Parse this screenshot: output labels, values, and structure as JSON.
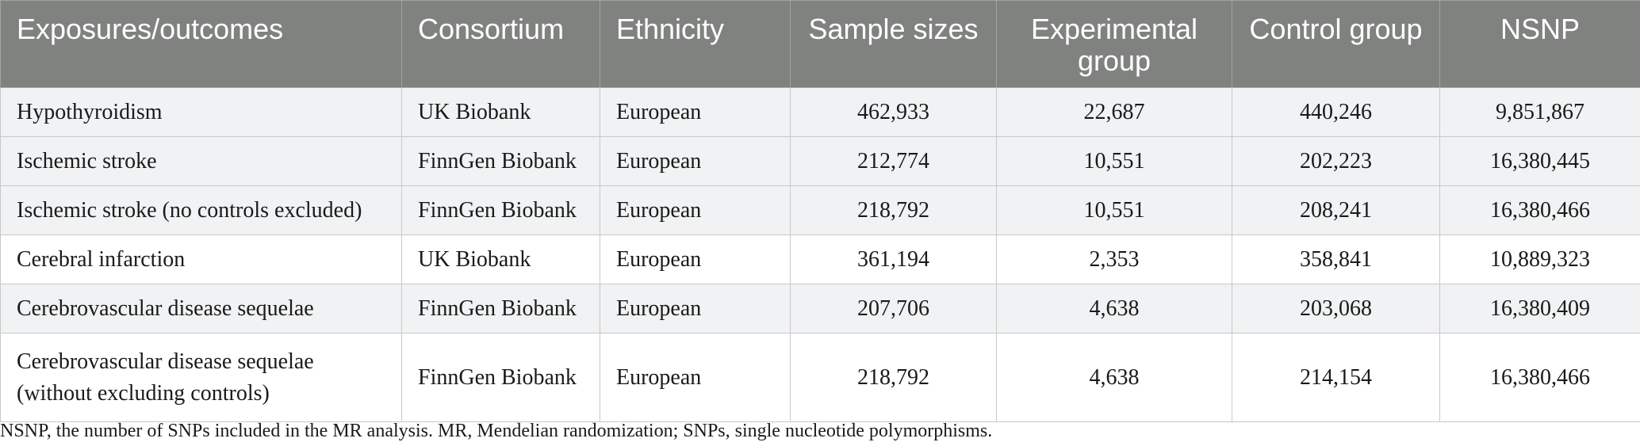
{
  "table": {
    "headers": [
      "Exposures/outcomes",
      "Consortium",
      "Ethnicity",
      "Sample sizes",
      "Experimental group",
      "Control group",
      "NSNP"
    ],
    "rows": [
      [
        "Hypothyroidism",
        "UK Biobank",
        "European",
        "462,933",
        "22,687",
        "440,246",
        "9,851,867"
      ],
      [
        "Ischemic stroke",
        "FinnGen Biobank",
        "European",
        "212,774",
        "10,551",
        "202,223",
        "16,380,445"
      ],
      [
        "Ischemic stroke (no controls excluded)",
        "FinnGen Biobank",
        "European",
        "218,792",
        "10,551",
        "208,241",
        "16,380,466"
      ],
      [
        "Cerebral infarction",
        "UK Biobank",
        "European",
        "361,194",
        "2,353",
        "358,841",
        "10,889,323"
      ],
      [
        "Cerebrovascular disease sequelae",
        "FinnGen Biobank",
        "European",
        "207,706",
        "4,638",
        "203,068",
        "16,380,409"
      ],
      [
        "Cerebrovascular disease sequelae (without excluding controls)",
        "FinnGen Biobank",
        "European",
        "218,792",
        "4,638",
        "214,154",
        "16,380,466"
      ]
    ]
  },
  "footnote": "NSNP, the number of SNPs included in the MR analysis. MR, Mendelian randomization; SNPs, single nucleotide polymorphisms.",
  "colors": {
    "header_background": "#808280",
    "header_text": "#ffffff",
    "row_shade": "#f1f2f3",
    "border": "#c8c8c8"
  }
}
